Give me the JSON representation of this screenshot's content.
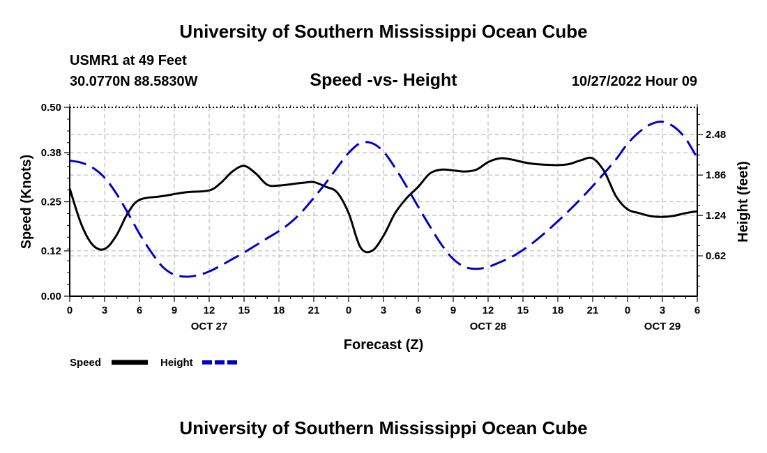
{
  "header": {
    "title_top": "University of Southern Mississippi Ocean Cube",
    "station": "USMR1 at 49 Feet",
    "coords": "30.0770N  88.5830W",
    "subtitle": "Speed -vs- Height",
    "time": "10/27/2022 Hour 09",
    "title_bottom": "University of Southern Mississippi Ocean Cube"
  },
  "chart_data": {
    "type": "line",
    "xlabel": "Forecast (Z)",
    "ylabel_left": "Speed (Knots)",
    "ylabel_right": "Height (feet)",
    "x_tick_labels": [
      "0",
      "3",
      "6",
      "9",
      "12",
      "15",
      "18",
      "21",
      "0",
      "3",
      "6",
      "9",
      "12",
      "15",
      "18",
      "21",
      "0",
      "3",
      "6"
    ],
    "date_labels": [
      {
        "hour": 12,
        "label": "OCT 27"
      },
      {
        "hour": 36,
        "label": "OCT 28"
      },
      {
        "hour": 51,
        "label": "OCT 29"
      }
    ],
    "xlim": [
      0,
      54
    ],
    "ylim_left": [
      0,
      0.5
    ],
    "left_ticks": [
      0.0,
      0.12,
      0.25,
      0.38,
      0.5
    ],
    "left_tick_labels": [
      "0.00",
      "0.12",
      "0.25",
      "0.38",
      "0.50"
    ],
    "ylim_right": [
      0,
      2.9
    ],
    "right_ticks": [
      0.62,
      1.24,
      1.86,
      2.48
    ],
    "right_tick_labels": [
      "0.62",
      "1.24",
      "1.86",
      "2.48"
    ],
    "grid": true,
    "legend": [
      {
        "name": "Speed",
        "color": "#000000",
        "dash": "solid"
      },
      {
        "name": "Height",
        "color": "#0000cc",
        "dash": "dashed"
      }
    ],
    "series": [
      {
        "name": "Speed",
        "axis": "left",
        "color": "#000000",
        "x": [
          0,
          1,
          2,
          3,
          4,
          5,
          6,
          8,
          10,
          12,
          13,
          14,
          15,
          16,
          17,
          18,
          20,
          21,
          22,
          23,
          24,
          25,
          26,
          27,
          28,
          29,
          30,
          31,
          32,
          33,
          34,
          35,
          36,
          37,
          38,
          39,
          40,
          41,
          42,
          43,
          44,
          45,
          46,
          47,
          48,
          49,
          50,
          51,
          52,
          53,
          54
        ],
        "values": [
          0.285,
          0.19,
          0.135,
          0.125,
          0.16,
          0.22,
          0.255,
          0.265,
          0.275,
          0.28,
          0.3,
          0.33,
          0.345,
          0.325,
          0.295,
          0.293,
          0.3,
          0.302,
          0.29,
          0.275,
          0.22,
          0.13,
          0.12,
          0.16,
          0.22,
          0.26,
          0.29,
          0.325,
          0.335,
          0.333,
          0.33,
          0.335,
          0.355,
          0.365,
          0.362,
          0.355,
          0.35,
          0.348,
          0.347,
          0.35,
          0.36,
          0.365,
          0.33,
          0.265,
          0.23,
          0.22,
          0.212,
          0.21,
          0.213,
          0.22,
          0.225
        ]
      },
      {
        "name": "Height",
        "axis": "right",
        "color": "#0000cc",
        "x": [
          0,
          1,
          2,
          3,
          4,
          5,
          6,
          7,
          8,
          9,
          10,
          11,
          12,
          13,
          14,
          15,
          16,
          17,
          18,
          19,
          20,
          21,
          22,
          23,
          24,
          25,
          26,
          27,
          28,
          29,
          30,
          31,
          32,
          33,
          34,
          35,
          36,
          37,
          38,
          39,
          40,
          41,
          42,
          43,
          44,
          45,
          46,
          47,
          48,
          49,
          50,
          51,
          52,
          53,
          54
        ],
        "values": [
          2.08,
          2.05,
          1.97,
          1.82,
          1.58,
          1.28,
          0.96,
          0.68,
          0.45,
          0.33,
          0.3,
          0.32,
          0.38,
          0.47,
          0.57,
          0.67,
          0.78,
          0.89,
          1.0,
          1.13,
          1.3,
          1.51,
          1.73,
          1.97,
          2.2,
          2.35,
          2.35,
          2.22,
          1.97,
          1.68,
          1.37,
          1.07,
          0.79,
          0.57,
          0.45,
          0.42,
          0.45,
          0.52,
          0.6,
          0.71,
          0.84,
          0.99,
          1.15,
          1.32,
          1.5,
          1.69,
          1.89,
          2.1,
          2.34,
          2.52,
          2.64,
          2.68,
          2.6,
          2.42,
          2.12
        ]
      }
    ]
  }
}
